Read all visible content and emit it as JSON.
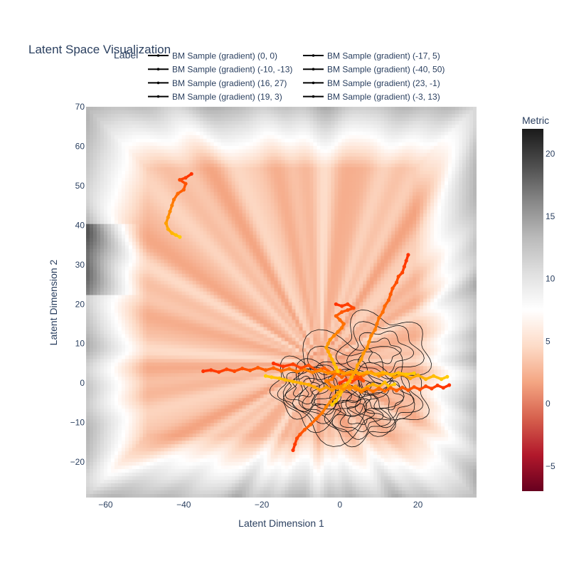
{
  "chart_data": {
    "type": "heatmap",
    "title": "Latent Space Visualization",
    "xlabel": "Latent Dimension 1",
    "ylabel": "Latent Dimension 2",
    "xlim": [
      -65,
      35
    ],
    "ylim": [
      -29,
      70
    ],
    "x_ticks": [
      -60,
      -40,
      -20,
      0,
      20
    ],
    "x_tick_labels": [
      "−60",
      "−40",
      "−20",
      "0",
      "20"
    ],
    "y_ticks": [
      -20,
      -10,
      0,
      10,
      20,
      30,
      40,
      50,
      60,
      70
    ],
    "y_tick_labels": [
      "−20",
      "−10",
      "0",
      "10",
      "20",
      "30",
      "40",
      "50",
      "60",
      "70"
    ],
    "legend": {
      "title": "Label",
      "placement": "top",
      "entries": [
        "BM Sample (gradient)  (0, 0)",
        "BM Sample (gradient)  (-17, 5)",
        "BM Sample (gradient)  (-10, -13)",
        "BM Sample (gradient)  (-40, 50)",
        "BM Sample (gradient)  (16, 27)",
        "BM Sample (gradient)  (23, -1)",
        "BM Sample (gradient)  (19, 3)",
        "BM Sample (gradient)  (-3, 13)"
      ]
    },
    "colorbar": {
      "title": "Metric",
      "range": [
        -7,
        22
      ],
      "ticks": [
        -5,
        0,
        5,
        10,
        15,
        20
      ],
      "tick_labels": [
        "−5",
        "0",
        "5",
        "10",
        "15",
        "20"
      ],
      "colorscale": "RdGy"
    },
    "trajectories": [
      {
        "start": [
          0,
          0
        ],
        "points": [
          [
            0,
            0
          ],
          [
            1.5,
            0.8
          ],
          [
            3,
            0.3
          ],
          [
            4.5,
            1.2
          ],
          [
            6,
            0.6
          ],
          [
            5,
            2
          ],
          [
            3.5,
            1.5
          ],
          [
            2,
            2.5
          ],
          [
            0.5,
            1.5
          ],
          [
            -1,
            2.5
          ],
          [
            -2,
            1
          ],
          [
            -3.5,
            0.5
          ],
          [
            -2,
            -0.8
          ],
          [
            -0.5,
            -1.2
          ],
          [
            1,
            -0.5
          ],
          [
            2.5,
            -1.5
          ],
          [
            4,
            -0.8
          ],
          [
            5.5,
            -1.8
          ],
          [
            7,
            -1
          ],
          [
            8.5,
            -0.3
          ],
          [
            10,
            -1
          ],
          [
            11.5,
            0.2
          ],
          [
            12.5,
            -0.8
          ],
          [
            14,
            -0.3
          ]
        ]
      },
      {
        "start": [
          -17,
          5
        ],
        "points": [
          [
            -17,
            5
          ],
          [
            -14.5,
            4.2
          ],
          [
            -12,
            4.8
          ],
          [
            -10,
            3.8
          ],
          [
            -8,
            4.5
          ],
          [
            -6,
            3.2
          ],
          [
            -4,
            3.8
          ],
          [
            -2,
            2.5
          ],
          [
            0,
            3.2
          ],
          [
            2,
            2.2
          ],
          [
            4,
            3
          ],
          [
            6,
            2
          ],
          [
            8,
            2.8
          ],
          [
            10,
            1.8
          ],
          [
            12,
            2.5
          ],
          [
            14,
            1.5
          ],
          [
            16,
            2.2
          ],
          [
            18,
            1.2
          ],
          [
            20,
            2
          ],
          [
            22,
            1
          ],
          [
            24,
            1.8
          ],
          [
            26,
            1
          ],
          [
            27.5,
            1.6
          ]
        ]
      },
      {
        "start": [
          -10,
          -13
        ],
        "points": [
          [
            -12,
            -17
          ],
          [
            -11.5,
            -15.5
          ],
          [
            -11,
            -14
          ],
          [
            -10.2,
            -13
          ],
          [
            -9,
            -11.8
          ],
          [
            -7.5,
            -10.5
          ],
          [
            -6,
            -9
          ],
          [
            -4.5,
            -7.5
          ],
          [
            -3.5,
            -6
          ],
          [
            -2.5,
            -4.8
          ],
          [
            -1.5,
            -3.5
          ],
          [
            -0.5,
            -2.5
          ],
          [
            0.5,
            -1.5
          ],
          [
            1.5,
            -0.5
          ],
          [
            2.5,
            0.5
          ],
          [
            3,
            1.5
          ]
        ]
      },
      {
        "start": [
          -40,
          50
        ],
        "points": [
          [
            -38,
            53
          ],
          [
            -39.5,
            52
          ],
          [
            -41,
            51.5
          ],
          [
            -39.5,
            50.5
          ],
          [
            -40,
            49
          ],
          [
            -41.5,
            48
          ],
          [
            -42.5,
            46.5
          ],
          [
            -43,
            45
          ],
          [
            -43.5,
            43.5
          ],
          [
            -44,
            42
          ],
          [
            -44.5,
            40.5
          ],
          [
            -44,
            39
          ],
          [
            -43,
            38
          ],
          [
            -42,
            37.5
          ],
          [
            -41,
            37
          ]
        ]
      },
      {
        "start": [
          16,
          27
        ],
        "points": [
          [
            17.5,
            32.5
          ],
          [
            17,
            31
          ],
          [
            16.5,
            29.5
          ],
          [
            16,
            28
          ],
          [
            15,
            27
          ],
          [
            14.5,
            25.5
          ],
          [
            13.5,
            24
          ],
          [
            13,
            22.5
          ],
          [
            12.5,
            21
          ],
          [
            11.5,
            19.5
          ],
          [
            11,
            18
          ],
          [
            10,
            16.5
          ],
          [
            9.5,
            15
          ],
          [
            9,
            13.5
          ],
          [
            8,
            12
          ],
          [
            7.5,
            10.5
          ],
          [
            7,
            9
          ],
          [
            6,
            7.5
          ],
          [
            5.5,
            6
          ],
          [
            4.5,
            4.5
          ],
          [
            4,
            3
          ],
          [
            3,
            1.5
          ],
          [
            2,
            0
          ],
          [
            1,
            -1.5
          ],
          [
            0,
            -3
          ],
          [
            -1,
            -4.5
          ],
          [
            -2,
            -5.5
          ]
        ]
      },
      {
        "start": [
          23,
          -1
        ],
        "points": [
          [
            28,
            -0.5
          ],
          [
            26.5,
            -1.2
          ],
          [
            25,
            -0.6
          ],
          [
            23.5,
            -1.4
          ],
          [
            22,
            -0.8
          ],
          [
            20.5,
            -1.6
          ],
          [
            19,
            -1
          ],
          [
            17.5,
            -1.8
          ],
          [
            16,
            -1.1
          ],
          [
            14.5,
            -1.9
          ],
          [
            13,
            -1.2
          ],
          [
            11.5,
            -2
          ],
          [
            10,
            -1.3
          ],
          [
            8.5,
            -2.1
          ],
          [
            7,
            -1.4
          ],
          [
            5.5,
            -2.2
          ],
          [
            4,
            -1.5
          ],
          [
            2.5,
            -0.8
          ],
          [
            1,
            -1.6
          ],
          [
            -0.5,
            -0.9
          ],
          [
            -2,
            -1.8
          ],
          [
            -3.5,
            -1
          ],
          [
            -5,
            -1.8
          ],
          [
            -6.5,
            -1
          ],
          [
            -8,
            -0.4
          ],
          [
            -10,
            0
          ],
          [
            -12,
            0.4
          ],
          [
            -14,
            0.8
          ],
          [
            -15.5,
            1.2
          ],
          [
            -17.5,
            1.5
          ],
          [
            -19,
            1.8
          ]
        ]
      },
      {
        "start": [
          19,
          3
        ],
        "points": [
          [
            -35,
            3
          ],
          [
            -33,
            3.3
          ],
          [
            -31,
            2.8
          ],
          [
            -29,
            3.5
          ],
          [
            -27,
            3
          ],
          [
            -25,
            3.7
          ],
          [
            -23,
            3.2
          ],
          [
            -21,
            3.9
          ],
          [
            -19,
            3.3
          ],
          [
            -17,
            3.8
          ],
          [
            -15,
            3.1
          ],
          [
            -13,
            3.6
          ],
          [
            -11,
            2.9
          ],
          [
            -9,
            3.4
          ],
          [
            -7,
            2.7
          ],
          [
            -5,
            3.2
          ],
          [
            -3,
            2.5
          ],
          [
            -1,
            3
          ],
          [
            1,
            2.4
          ],
          [
            3,
            2.9
          ],
          [
            5,
            2.3
          ],
          [
            7,
            2.8
          ],
          [
            9,
            2.2
          ],
          [
            11,
            2.7
          ],
          [
            13,
            2.1
          ],
          [
            15,
            2.6
          ],
          [
            17,
            2.2
          ],
          [
            19,
            2.5
          ]
        ]
      },
      {
        "start": [
          -3,
          13
        ],
        "points": [
          [
            -1,
            20
          ],
          [
            0.5,
            19.5
          ],
          [
            2,
            20
          ],
          [
            3.5,
            19
          ],
          [
            2,
            18.5
          ],
          [
            0.5,
            18
          ],
          [
            -1,
            17
          ],
          [
            0,
            16
          ],
          [
            1,
            15
          ],
          [
            0.5,
            14
          ],
          [
            -0.5,
            13
          ],
          [
            -1.5,
            12
          ],
          [
            -2.5,
            11
          ],
          [
            -3,
            10
          ],
          [
            -3.5,
            9
          ],
          [
            -3,
            8
          ],
          [
            -2.5,
            7
          ],
          [
            -2,
            6
          ],
          [
            -1.5,
            5
          ],
          [
            -1,
            4
          ],
          [
            -0.5,
            3
          ]
        ]
      }
    ]
  }
}
